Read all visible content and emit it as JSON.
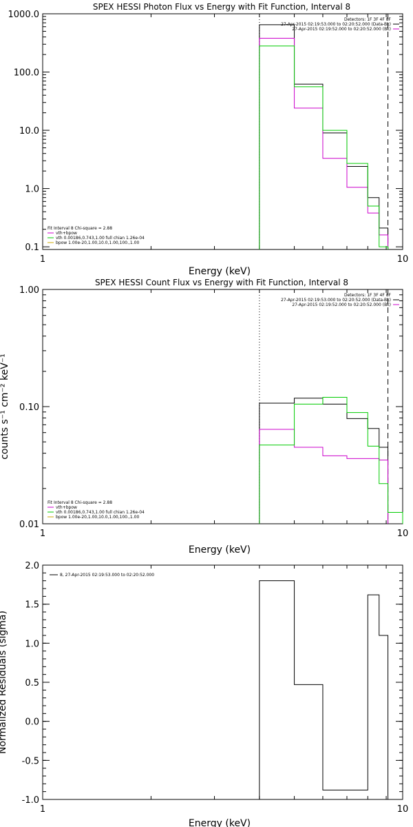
{
  "colors": {
    "data": "#000000",
    "model_total": "#cc00cc",
    "vth": "#00cc00",
    "bpow": "#ccaa00"
  },
  "chart_data": [
    {
      "type": "line",
      "title": "SPEX HESSI Photon Flux vs Energy with Fit Function, Interval 8",
      "xlabel": "Energy (keV)",
      "ylabel": "",
      "xscale": "log",
      "yscale": "log",
      "xlim": [
        1,
        10
      ],
      "ylim": [
        0.09,
        1000
      ],
      "x_ticks": [
        {
          "v": 1,
          "label": "1"
        },
        {
          "v": 10,
          "label": "10"
        }
      ],
      "y_ticks": [
        {
          "v": 0.1,
          "label": "0.1"
        },
        {
          "v": 1,
          "label": "1.0"
        },
        {
          "v": 10,
          "label": "10.0"
        },
        {
          "v": 100,
          "label": "100.0"
        },
        {
          "v": 1000,
          "label": "1000.0"
        }
      ],
      "vlines": [
        {
          "x": 4.0,
          "style": "dotted"
        },
        {
          "x": 9.1,
          "style": "dashed"
        }
      ],
      "legend_top_right": [
        {
          "text": "Detectors: 1F 3F 4F 8F",
          "color": "#000000"
        },
        {
          "text": "27-Apr-2015 02:19:53.000 to 02:20:52.000 (Data-Bk)",
          "color": "#000000"
        },
        {
          "text": "27-Apr-2015 02:19:52.000 to 02:20:52.000 (Bk)",
          "color": "#cc00cc"
        }
      ],
      "legend_bottom_left": [
        {
          "text": "Fit Interval 8   Chi-square = 2.88",
          "color": "#000000"
        },
        {
          "text": "vth+bpow",
          "color": "#cc00cc"
        },
        {
          "text": "vth 0.00186,0.743,1.00   full chian 1.26e-04",
          "color": "#00cc00"
        },
        {
          "text": "bpow 1.00e-20,1.00,10.0,1.00,100.,1.00",
          "color": "#ccaa00"
        }
      ],
      "bin_edges": [
        4.0,
        5.0,
        6.0,
        7.0,
        8.0,
        8.6,
        9.1,
        10.0
      ],
      "series": [
        {
          "color": "#000000",
          "values": [
            650,
            62,
            9.0,
            2.4,
            0.7,
            0.21,
            null
          ]
        },
        {
          "color": "#cc00cc",
          "values": [
            380,
            24,
            3.3,
            1.05,
            0.38,
            0.16,
            null
          ]
        },
        {
          "color": "#00cc00",
          "values": [
            280,
            56,
            10.0,
            2.7,
            0.5,
            0.1,
            null
          ]
        }
      ]
    },
    {
      "type": "line",
      "title": "SPEX HESSI Count Flux vs Energy with Fit Function, Interval 8",
      "xlabel": "Energy (keV)",
      "ylabel": "counts s⁻¹ cm⁻² keV⁻¹",
      "xscale": "log",
      "yscale": "log",
      "xlim": [
        1,
        10
      ],
      "ylim": [
        0.01,
        1.0
      ],
      "x_ticks": [
        {
          "v": 1,
          "label": "1"
        },
        {
          "v": 10,
          "label": "10"
        }
      ],
      "y_ticks": [
        {
          "v": 0.01,
          "label": "0.01"
        },
        {
          "v": 0.1,
          "label": "0.10"
        },
        {
          "v": 1.0,
          "label": "1.00"
        }
      ],
      "vlines": [
        {
          "x": 4.0,
          "style": "dotted"
        },
        {
          "x": 9.1,
          "style": "dashed"
        }
      ],
      "legend_top_right": [
        {
          "text": "Detectors: 1F 3F 4F 8F",
          "color": "#000000"
        },
        {
          "text": "27-Apr-2015 02:19:53.000 to 02:20:52.000 (Data-Bk)",
          "color": "#000000"
        },
        {
          "text": "27-Apr-2015 02:19:52.000 to 02:20:52.000 (Bk)",
          "color": "#cc00cc"
        }
      ],
      "legend_bottom_left": [
        {
          "text": "Fit Interval 8   Chi-square = 2.88",
          "color": "#000000"
        },
        {
          "text": "vth+bpow",
          "color": "#cc00cc"
        },
        {
          "text": "vth 0.00186,0.743,1.00   full chian 1.26e-04",
          "color": "#00cc00"
        },
        {
          "text": "bpow 1.00e-20,1.00,10.0,1.00,100.,1.00",
          "color": "#ccaa00"
        }
      ],
      "bin_edges": [
        4.0,
        5.0,
        6.0,
        7.0,
        8.0,
        8.6,
        9.1,
        10.0
      ],
      "series": [
        {
          "color": "#000000",
          "values": [
            0.107,
            0.118,
            0.105,
            0.079,
            0.065,
            0.045,
            null
          ]
        },
        {
          "color": "#cc00cc",
          "values": [
            0.064,
            0.045,
            0.038,
            0.036,
            0.036,
            0.035,
            null
          ]
        },
        {
          "color": "#00cc00",
          "values": [
            0.047,
            0.105,
            0.12,
            0.089,
            0.046,
            0.022,
            0.0125
          ]
        }
      ]
    },
    {
      "type": "line",
      "title": "",
      "xlabel": "Energy (keV)",
      "ylabel": "Normalized Residuals (sigma)",
      "xscale": "log",
      "yscale": "linear",
      "xlim": [
        1,
        10
      ],
      "ylim": [
        -1.0,
        2.0
      ],
      "x_ticks": [
        {
          "v": 1,
          "label": "1"
        },
        {
          "v": 10,
          "label": "10"
        }
      ],
      "y_ticks": [
        {
          "v": -1.0,
          "label": "-1.0"
        },
        {
          "v": -0.5,
          "label": "-0.5"
        },
        {
          "v": 0.0,
          "label": "0.0"
        },
        {
          "v": 0.5,
          "label": "0.5"
        },
        {
          "v": 1.0,
          "label": "1.0"
        },
        {
          "v": 1.5,
          "label": "1.5"
        },
        {
          "v": 2.0,
          "label": "2.0"
        }
      ],
      "vlines": [],
      "legend_top_left": [
        {
          "text": "8, 27-Apr-2015 02:19:53.000 to 02:20:52.000",
          "color": "#000000"
        }
      ],
      "bin_edges": [
        4.0,
        5.0,
        6.0,
        8.0,
        8.6,
        9.1
      ],
      "series": [
        {
          "color": "#000000",
          "values": [
            1.8,
            0.47,
            -0.88,
            1.62,
            1.1
          ],
          "drop_to_bottom": true
        }
      ]
    }
  ]
}
